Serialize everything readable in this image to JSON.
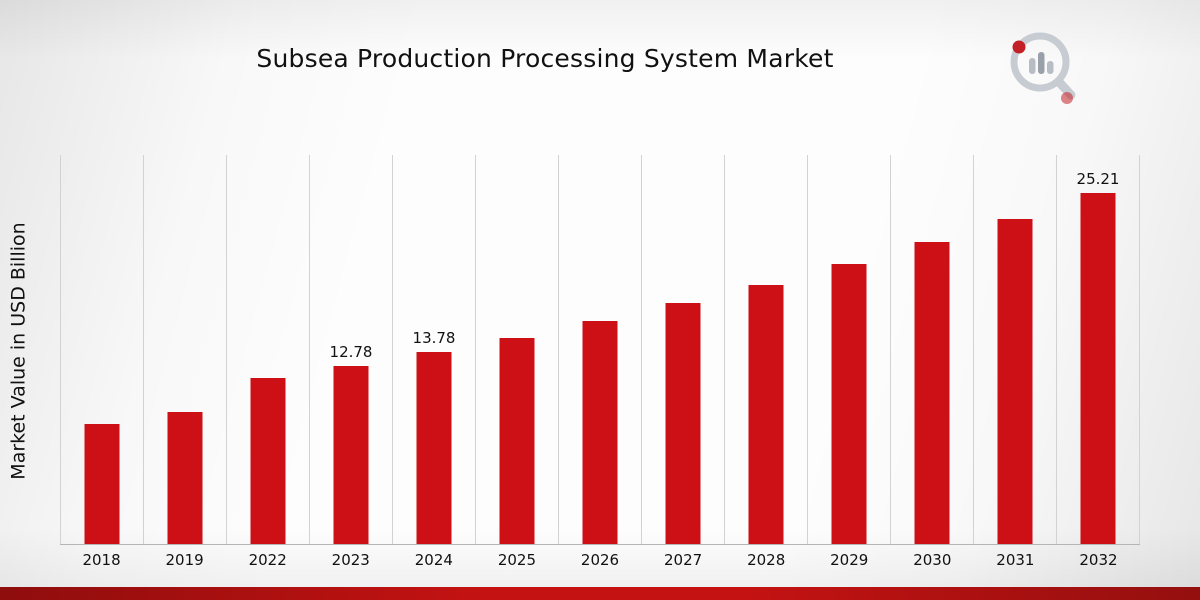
{
  "title": "Subsea Production Processing System Market",
  "ylabel": "Market Value in USD Billion",
  "logo": {
    "name": "market-research-logo"
  },
  "colors": {
    "bar": "#cc1016",
    "footer_stripe": "#c41212",
    "gridline": "#d2d2d2",
    "axis": "#b5b5b5"
  },
  "chart_data": {
    "type": "bar",
    "title": "Subsea Production Processing System Market",
    "xlabel": "",
    "ylabel": "Market Value in USD Billion",
    "categories": [
      "2018",
      "2019",
      "2022",
      "2023",
      "2024",
      "2025",
      "2026",
      "2027",
      "2028",
      "2029",
      "2030",
      "2031",
      "2032"
    ],
    "values": [
      8.6,
      9.5,
      11.9,
      12.78,
      13.78,
      14.8,
      16.0,
      17.3,
      18.6,
      20.1,
      21.7,
      23.3,
      25.21
    ],
    "data_labels": {
      "2023": "12.78",
      "2024": "13.78",
      "2032": "25.21"
    },
    "ylim": [
      0,
      28
    ],
    "grid": "vertical",
    "legend": "none",
    "bar_color": "#cc1016"
  }
}
